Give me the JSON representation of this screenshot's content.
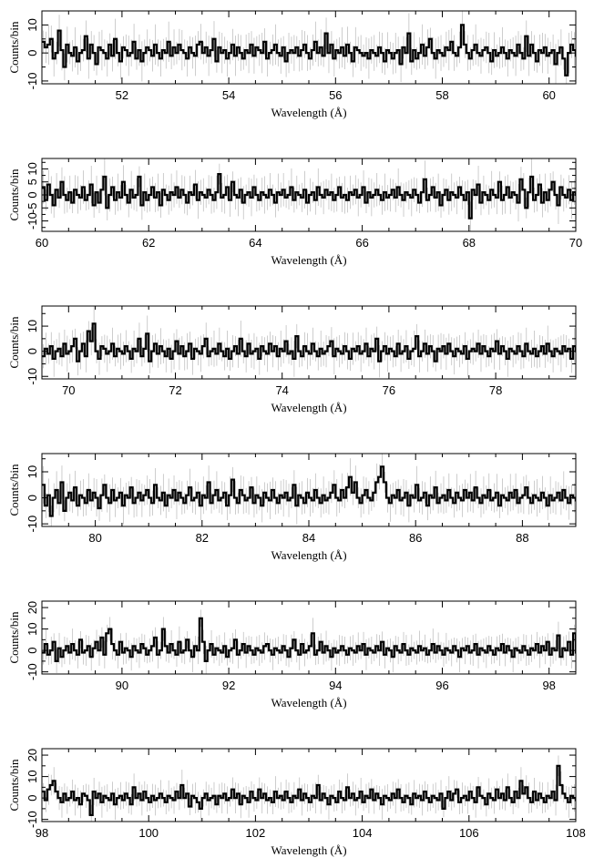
{
  "chart_data": [
    {
      "type": "line",
      "xlabel": "Wavelength (Å)",
      "ylabel": "Counts/bin",
      "xlim": [
        50.5,
        60.5
      ],
      "ylim": [
        -11,
        15
      ],
      "xticks": [
        52,
        54,
        56,
        58,
        60
      ],
      "yticks": [
        -10,
        0,
        10
      ],
      "x_start": 50.5,
      "bin_width": 0.05,
      "values": [
        4,
        2,
        3,
        5,
        -2,
        0,
        8,
        1,
        -5,
        3,
        0,
        -1,
        2,
        -3,
        0,
        1,
        6,
        -2,
        3,
        0,
        -4,
        2,
        1,
        0,
        -2,
        3,
        -1,
        5,
        0,
        -3,
        2,
        1,
        -1,
        0,
        4,
        -2,
        1,
        -3,
        0,
        2,
        1,
        -1,
        3,
        0,
        -2,
        1,
        0,
        4,
        -1,
        2,
        0,
        3,
        1,
        0,
        -2,
        2,
        0,
        -1,
        3,
        4,
        0,
        2,
        -1,
        1,
        5,
        -3,
        2,
        0,
        1,
        -2,
        0,
        3,
        -1,
        2,
        0,
        -2,
        1,
        0,
        3,
        -1,
        2,
        1,
        0,
        4,
        -2,
        0,
        1,
        3,
        0,
        -1,
        2,
        -3,
        0,
        1,
        0,
        2,
        -1,
        1,
        3,
        0,
        -2,
        1,
        4,
        0,
        2,
        -1,
        7,
        0,
        3,
        -2,
        1,
        0,
        2,
        -1,
        3,
        0,
        -3,
        2,
        1,
        0,
        -1,
        0,
        -2,
        1,
        0,
        -1,
        2,
        0,
        -3,
        1,
        0,
        -2,
        0,
        1,
        -4,
        2,
        0,
        7,
        -3,
        1,
        -2,
        0,
        3,
        -1,
        2,
        5,
        0,
        -2,
        1,
        0,
        -1,
        2,
        1,
        4,
        0,
        -1,
        2,
        10,
        3,
        0,
        -2,
        1,
        3,
        0,
        -1,
        1,
        2,
        0,
        -3,
        1,
        -1,
        0,
        2,
        0,
        -2,
        1,
        0,
        -1,
        3,
        0,
        -2,
        6,
        -1,
        3,
        0,
        -3,
        1,
        0,
        2,
        -1,
        0,
        1,
        -4,
        0,
        2,
        -2,
        -8,
        0,
        3,
        1,
        -1,
        0,
        2,
        9,
        -2,
        1,
        0,
        3,
        -4,
        0,
        1,
        -2,
        -3,
        0,
        2,
        -1,
        1,
        -3,
        0,
        -1,
        3,
        2,
        0,
        -1,
        1,
        5,
        0,
        -2,
        2,
        0,
        1,
        -1,
        4,
        0,
        -2,
        1,
        -1
      ]
    },
    {
      "type": "line",
      "xlabel": "Wavelength (Å)",
      "ylabel": "Counts/bin",
      "xlim": [
        60,
        70
      ],
      "ylim": [
        -14,
        14
      ],
      "xticks": [
        60,
        62,
        64,
        66,
        68,
        70
      ],
      "yticks": [
        -10,
        -5,
        0,
        5,
        10
      ],
      "x_start": 60,
      "bin_width": 0.05,
      "values": [
        3,
        -2,
        4,
        0,
        -4,
        2,
        -1,
        5,
        0,
        -2,
        1,
        -3,
        2,
        0,
        -1,
        3,
        -2,
        0,
        4,
        -4,
        1,
        -3,
        2,
        7,
        -5,
        0,
        3,
        -2,
        1,
        -1,
        5,
        0,
        -3,
        2,
        -1,
        0,
        7,
        -4,
        1,
        -2,
        0,
        3,
        -1,
        1,
        -4,
        2,
        0,
        -2,
        1,
        0,
        3,
        -1,
        2,
        0,
        -3,
        1,
        0,
        4,
        -2,
        1,
        0,
        -1,
        2,
        0,
        -2,
        1,
        8,
        -1,
        0,
        3,
        -2,
        5,
        0,
        -1,
        2,
        -3,
        0,
        1,
        -1,
        3,
        0,
        -2,
        1,
        0,
        -1,
        2,
        0,
        -3,
        1,
        0,
        2,
        -1,
        0,
        3,
        -2,
        1,
        0,
        -1,
        2,
        -3,
        0,
        1,
        -2,
        3,
        0,
        -1,
        2,
        0,
        1,
        -2,
        0,
        3,
        -1,
        0,
        -2,
        1,
        0,
        2,
        -1,
        0,
        3,
        -3,
        1,
        -1,
        0,
        2,
        0,
        -2,
        1,
        -1,
        0,
        2,
        -1,
        3,
        0,
        -2,
        1,
        0,
        -1,
        2,
        0,
        -3,
        1,
        6,
        -2,
        0,
        3,
        -1,
        1,
        -4,
        0,
        2,
        -2,
        1,
        0,
        -1,
        3,
        0,
        -2,
        1,
        -9,
        2,
        0,
        4,
        -3,
        1,
        0,
        -2,
        2,
        0,
        -1,
        5,
        -2,
        0,
        3,
        -1,
        1,
        0,
        -3,
        6,
        2,
        -5,
        1,
        7,
        -2,
        0,
        4,
        -3,
        1,
        -2,
        2,
        5,
        0,
        -4,
        3,
        0,
        -1,
        2,
        -2,
        1,
        0,
        -3,
        2,
        0,
        1,
        -2,
        0,
        3,
        -1,
        2,
        5,
        -3,
        0,
        7,
        -2,
        1,
        0,
        -3,
        2,
        -1,
        0,
        4,
        -2,
        1,
        0,
        -1,
        2,
        0,
        -3,
        1,
        -6
      ]
    },
    {
      "type": "line",
      "xlabel": "Wavelength (Å)",
      "ylabel": "Counts/bin",
      "xlim": [
        69.5,
        79.5
      ],
      "ylim": [
        -11,
        18
      ],
      "xticks": [
        70,
        72,
        74,
        76,
        78
      ],
      "yticks": [
        -10,
        0,
        10
      ],
      "x_start": 69.5,
      "bin_width": 0.05,
      "values": [
        -2,
        1,
        -1,
        2,
        -3,
        0,
        1,
        -2,
        3,
        -1,
        0,
        2,
        5,
        -4,
        0,
        3,
        -2,
        8,
        4,
        11,
        0,
        -3,
        2,
        1,
        -1,
        0,
        3,
        -2,
        1,
        0,
        -1,
        2,
        0,
        -3,
        1,
        0,
        5,
        -2,
        1,
        7,
        -4,
        0,
        3,
        -1,
        2,
        0,
        -2,
        1,
        -3,
        0,
        4,
        -1,
        2,
        -2,
        0,
        3,
        -3,
        1,
        0,
        -1,
        2,
        5,
        -2,
        0,
        1,
        -1,
        3,
        0,
        -2,
        1,
        -3,
        0,
        2,
        -1,
        5,
        0,
        -2,
        3,
        -1,
        0,
        1,
        -3,
        2,
        0,
        -1,
        3,
        0,
        2,
        -2,
        1,
        0,
        4,
        -1,
        0,
        -3,
        6,
        0,
        -2,
        2,
        0,
        -1,
        3,
        0,
        -2,
        1,
        -1,
        0,
        2,
        4,
        -2,
        1,
        0,
        -1,
        2,
        0,
        -3,
        1,
        0,
        2,
        -1,
        0,
        3,
        -2,
        1,
        0,
        5,
        -4,
        0,
        2,
        -1,
        1,
        0,
        -2,
        3,
        -1,
        0,
        2,
        -3,
        0,
        1,
        6,
        -2,
        0,
        3,
        -1,
        2,
        0,
        -4,
        1,
        0,
        2,
        -1,
        3,
        0,
        -2,
        1,
        0,
        -1,
        2,
        -3,
        0,
        1,
        0,
        3,
        -1,
        2,
        0,
        -2,
        1,
        0,
        4,
        -1,
        2,
        0,
        -3,
        1,
        0,
        -1,
        2,
        0,
        -2,
        3,
        0,
        -1,
        1,
        -2,
        0,
        2,
        -1,
        3,
        0,
        -2,
        1,
        0,
        -1,
        2,
        0,
        1,
        -3,
        2,
        0,
        -1,
        3,
        0,
        2,
        -2,
        1,
        0,
        4,
        -1,
        2,
        5,
        -3,
        0,
        6,
        -2,
        1,
        -4,
        3,
        0,
        -2,
        2,
        -1,
        1
      ]
    },
    {
      "type": "line",
      "xlabel": "Wavelength (Å)",
      "ylabel": "Counts/bin",
      "xlim": [
        79,
        89
      ],
      "ylim": [
        -11,
        17
      ],
      "xticks": [
        80,
        82,
        84,
        86,
        88
      ],
      "yticks": [
        -10,
        0,
        10
      ],
      "x_start": 79,
      "bin_width": 0.05,
      "values": [
        5,
        -3,
        1,
        -7,
        0,
        3,
        -2,
        6,
        -5,
        0,
        2,
        -1,
        4,
        -3,
        1,
        0,
        -2,
        3,
        -1,
        2,
        0,
        -4,
        1,
        5,
        0,
        -2,
        3,
        -1,
        0,
        2,
        -3,
        1,
        0,
        4,
        -2,
        0,
        2,
        -1,
        1,
        3,
        0,
        -2,
        5,
        0,
        -1,
        2,
        -3,
        1,
        0,
        3,
        -1,
        2,
        0,
        -2,
        1,
        4,
        -1,
        0,
        2,
        -3,
        1,
        0,
        6,
        -2,
        1,
        3,
        -1,
        0,
        2,
        -3,
        1,
        7,
        0,
        -2,
        3,
        1,
        -1,
        0,
        4,
        -2,
        1,
        0,
        -3,
        2,
        0,
        -1,
        3,
        0,
        -2,
        1,
        0,
        2,
        -1,
        0,
        5,
        -3,
        1,
        0,
        -2,
        2,
        0,
        -1,
        3,
        0,
        -2,
        1,
        -1,
        0,
        2,
        5,
        0,
        -1,
        3,
        0,
        4,
        8,
        2,
        6,
        0,
        -2,
        1,
        3,
        0,
        -1,
        2,
        6,
        8,
        12,
        6,
        0,
        -2,
        1,
        0,
        3,
        -1,
        0,
        2,
        -3,
        1,
        0,
        5,
        -1,
        0,
        2,
        -3,
        1,
        0,
        4,
        -2,
        0,
        1,
        -1,
        3,
        0,
        -2,
        2,
        0,
        -1,
        3,
        0,
        2,
        -1,
        4,
        0,
        -2,
        1,
        0,
        3,
        -1,
        0,
        2,
        -3,
        1,
        0,
        -1,
        2,
        0,
        3,
        -2,
        0,
        1,
        4,
        0,
        -2,
        1,
        0,
        -1,
        2,
        0,
        -3,
        1,
        -1,
        0,
        2,
        -1,
        3,
        0,
        -2,
        1,
        0,
        -1,
        2,
        0,
        4,
        -3,
        1,
        0,
        -1,
        2,
        -5,
        1
      ]
    },
    {
      "type": "line",
      "xlabel": "Wavelength (Å)",
      "ylabel": "Counts/bin",
      "xlim": [
        88.5,
        98.5
      ],
      "ylim": [
        -11,
        23
      ],
      "xticks": [
        90,
        92,
        94,
        96,
        98
      ],
      "yticks": [
        -10,
        0,
        10,
        20
      ],
      "x_start": 88.5,
      "bin_width": 0.05,
      "values": [
        -1,
        3,
        -2,
        0,
        4,
        -5,
        1,
        -3,
        0,
        2,
        -1,
        3,
        0,
        -2,
        5,
        -1,
        0,
        2,
        -3,
        1,
        4,
        0,
        6,
        -2,
        8,
        10,
        3,
        0,
        -2,
        4,
        -1,
        1,
        0,
        -3,
        2,
        0,
        -1,
        3,
        1,
        -2,
        0,
        2,
        6,
        -2,
        0,
        10,
        2,
        -1,
        3,
        0,
        -2,
        4,
        -1,
        0,
        5,
        0,
        -3,
        2,
        0,
        15,
        4,
        -5,
        0,
        3,
        -2,
        1,
        0,
        -1,
        2,
        -3,
        0,
        1,
        5,
        -2,
        0,
        3,
        -1,
        2,
        0,
        -2,
        1,
        0,
        -1,
        2,
        3,
        0,
        -2,
        1,
        0,
        -1,
        2,
        0,
        -3,
        1,
        5,
        0,
        -2,
        3,
        -1,
        0,
        2,
        8,
        -2,
        0,
        4,
        -1,
        2,
        0,
        -3,
        1,
        -1,
        0,
        2,
        0,
        -2,
        1,
        0,
        -1,
        2,
        0,
        3,
        -2,
        1,
        0,
        -1,
        2,
        0,
        4,
        -2,
        1,
        0,
        -3,
        2,
        0,
        -1,
        3,
        0,
        -2,
        1,
        0,
        -1,
        2,
        0,
        1,
        -2,
        0,
        3,
        -1,
        2,
        0,
        -2,
        1,
        0,
        -1,
        2,
        0,
        -3,
        1,
        0,
        2,
        -1,
        0,
        3,
        -2,
        1,
        0,
        -1,
        2,
        0,
        -2,
        1,
        0,
        3,
        -1,
        2,
        0,
        -3,
        1,
        0,
        -1,
        2,
        0,
        -2,
        1,
        0,
        3,
        -1,
        2,
        0,
        4,
        -2,
        1,
        0,
        7,
        -3,
        1,
        0,
        4,
        -2,
        8,
        -1,
        0,
        6,
        -2,
        0,
        1
      ]
    },
    {
      "type": "line",
      "xlabel": "Wavelength (Å)",
      "ylabel": "Counts/bin",
      "xlim": [
        98,
        108
      ],
      "ylim": [
        -11,
        23
      ],
      "xticks": [
        98,
        100,
        102,
        104,
        106,
        108
      ],
      "yticks": [
        -10,
        0,
        10,
        20
      ],
      "x_start": 98,
      "bin_width": 0.05,
      "values": [
        3,
        -1,
        4,
        6,
        8,
        3,
        0,
        -2,
        2,
        -1,
        0,
        3,
        -1,
        0,
        -3,
        2,
        1,
        -1,
        -8,
        3,
        0,
        2,
        -2,
        1,
        0,
        -1,
        2,
        -3,
        0,
        1,
        -1,
        2,
        0,
        -3,
        5,
        0,
        2,
        -1,
        3,
        0,
        -2,
        1,
        -1,
        0,
        2,
        0,
        -2,
        1,
        0,
        -1,
        3,
        0,
        6,
        0,
        2,
        -4,
        1,
        0,
        -2,
        -5,
        0,
        2,
        -1,
        0,
        1,
        -3,
        1,
        0,
        2,
        -1,
        0,
        4,
        0,
        2,
        -3,
        1,
        0,
        -2,
        3,
        0,
        -1,
        4,
        0,
        2,
        -1,
        0,
        -2,
        3,
        0,
        1,
        -1,
        3,
        0,
        -2,
        1,
        0,
        4,
        -1,
        2,
        0,
        -2,
        1,
        0,
        6,
        -1,
        2,
        0,
        -3,
        1,
        0,
        -2,
        3,
        0,
        -1,
        5,
        0,
        2,
        -1,
        0,
        3,
        -2,
        1,
        0,
        4,
        -1,
        2,
        0,
        -3,
        1,
        0,
        -1,
        2,
        0,
        4,
        0,
        -2,
        1,
        0,
        -3,
        2,
        0,
        1,
        -1,
        3,
        0,
        -2,
        1,
        0,
        -1,
        2,
        -5,
        0,
        3,
        -1,
        2,
        4,
        -2,
        0,
        1,
        -1,
        3,
        0,
        -2,
        5,
        1,
        0,
        -3,
        2,
        0,
        -1,
        4,
        0,
        2,
        -1,
        5,
        0,
        -2,
        3,
        0,
        8,
        2,
        5,
        0,
        -2,
        3,
        -1,
        2,
        0,
        -2,
        1,
        0,
        3,
        -1,
        15,
        6,
        2,
        0,
        -2,
        1,
        0,
        -1,
        2,
        0,
        -3,
        1,
        0,
        -1,
        2,
        0,
        -2,
        1,
        0,
        3,
        -2,
        0,
        1,
        -1,
        2,
        0,
        -3
      ]
    }
  ]
}
